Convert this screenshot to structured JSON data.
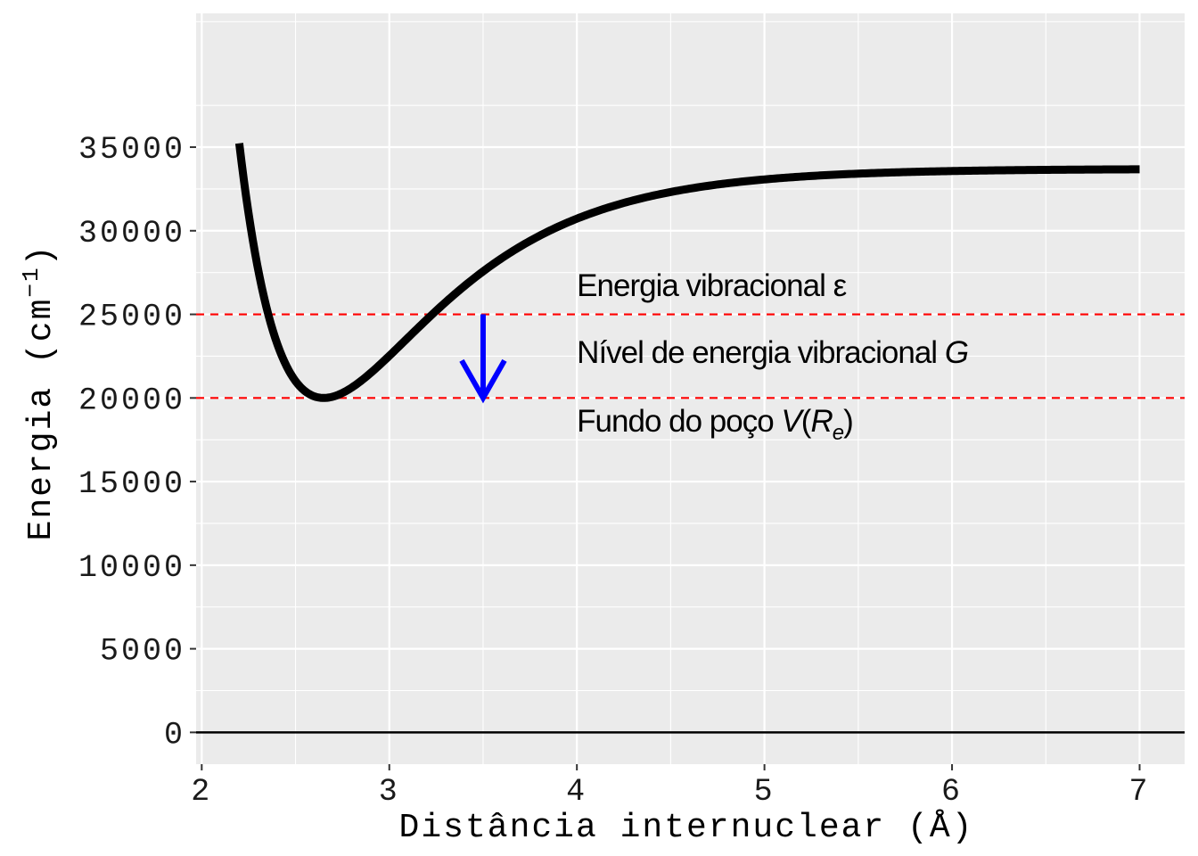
{
  "chart_data": {
    "type": "line",
    "xlabel": "Distância internuclear (Å)",
    "ylabel": {
      "base": "Energia (cm",
      "sup": "−1",
      "close": ")"
    },
    "xlim": [
      1.97,
      7.24
    ],
    "ylim": [
      -1900,
      43000
    ],
    "x_ticks": [
      2,
      3,
      4,
      5,
      6,
      7
    ],
    "y_ticks": [
      0,
      5000,
      10000,
      15000,
      20000,
      25000,
      30000,
      35000
    ],
    "grid": true,
    "background": "#ebebeb",
    "series": [
      {
        "curve": "morse",
        "x_start": 2.2,
        "x_end": 7.0,
        "well_bottom": 20000,
        "r_e": 2.65,
        "dissociation_limit": 33700,
        "a": 1.6,
        "color": "#000000"
      }
    ],
    "hlines": [
      {
        "y": 25000,
        "color": "#ff0000",
        "style": "dashed"
      },
      {
        "y": 20000,
        "color": "#ff0000",
        "style": "dashed"
      },
      {
        "y": 0,
        "color": "#000000",
        "style": "solid"
      }
    ],
    "arrow": {
      "x": 3.5,
      "y_from": 25000,
      "y_to": 20000,
      "color": "#0000ff"
    },
    "annotations": [
      {
        "x": 4.0,
        "y": 26100,
        "parts": [
          {
            "text": "Energia vibracional ε",
            "italic": false
          }
        ]
      },
      {
        "x": 4.0,
        "y": 22100,
        "parts": [
          {
            "text": "Nível de energia vibracional ",
            "italic": false
          },
          {
            "text": "G",
            "italic": true
          }
        ]
      },
      {
        "x": 4.0,
        "y": 18000,
        "parts": [
          {
            "text": "Fundo do poço ",
            "italic": false
          },
          {
            "text": "V",
            "italic": true
          },
          {
            "text": "(",
            "italic": false
          },
          {
            "text": "R",
            "italic": true
          },
          {
            "text": "e",
            "italic": true,
            "sub": true
          },
          {
            "text": ")",
            "italic": false
          }
        ]
      }
    ]
  }
}
